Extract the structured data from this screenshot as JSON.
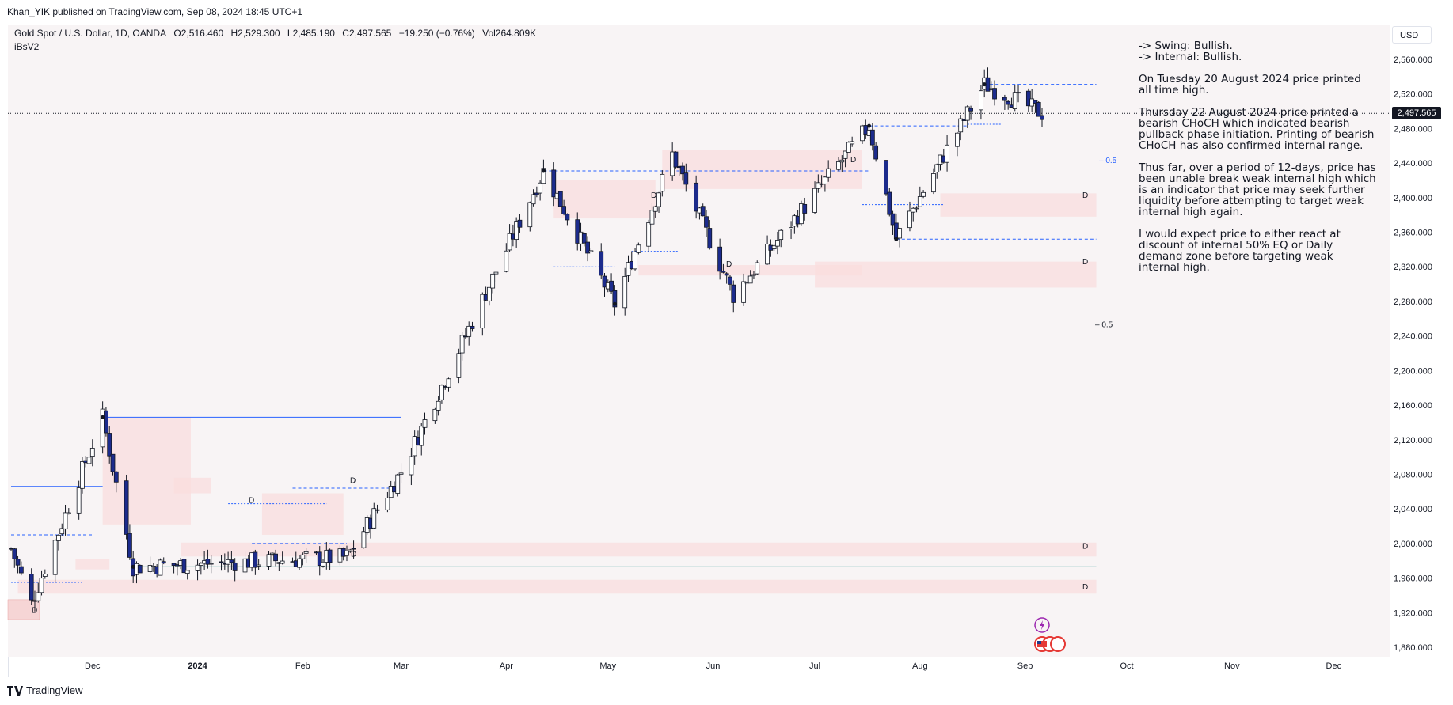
{
  "header": {
    "publisher": "Khan_YIK published on TradingView.com, Sep 08, 2024 18:45 UTC+1"
  },
  "legend": {
    "symbol": "Gold Spot / U.S. Dollar, 1D, OANDA",
    "open": "O2,516.460",
    "high": "H2,529.300",
    "low": "L2,485.190",
    "close": "C2,497.565",
    "change": "−19.250 (−0.76%)",
    "volume": "Vol264.809K",
    "indicator": "iBsV2"
  },
  "currency": "USD",
  "last_price_label": "2,497.565",
  "notes": [
    "-> Swing: Bullish.",
    "-> Internal: Bullish.",
    "On Tuesday 20 August 2024 price printed all time high.",
    "Thursday 22 August 2024 price printed a bearish CHoCH which indicated bearish pullback phase initiation.  Printing of bearish CHoCH has also confirmed internal range.",
    "Thus far, over a period of 12-days, price has been unable break weak internal high which is an indicator that price may seek further liquidity before attempting to target weak internal high again.",
    "I would expect price to either react at discount of internal 50% EQ or Daily demand zone before targeting weak internal high."
  ],
  "footer": {
    "brand": "TradingView"
  },
  "colors": {
    "bull": "#ffffff",
    "bear": "#1c2b8c",
    "zone": "#f9dede",
    "structure": "#2962ff",
    "grid": "#f0f3fa"
  },
  "chart_data": {
    "type": "candlestick",
    "symbol": "XAUUSD",
    "timeframe": "1D",
    "ylim": [
      1860,
      2580
    ],
    "y_ticks": [
      1880,
      1920,
      1960,
      2000,
      2040,
      2080,
      2120,
      2160,
      2200,
      2240,
      2280,
      2320,
      2360,
      2400,
      2440,
      2480,
      2520,
      2560
    ],
    "y_tick_labels": [
      "1,880.000",
      "1,920.000",
      "1,960.000",
      "2,000.000",
      "2,040.000",
      "2,080.000",
      "2,120.000",
      "2,160.000",
      "2,200.000",
      "2,240.000",
      "2,280.000",
      "2,320.000",
      "2,360.000",
      "2,400.000",
      "2,440.000",
      "2,480.000",
      "2,520.000",
      "2,560.000"
    ],
    "x_labels": [
      "Dec",
      "2024",
      "Feb",
      "Mar",
      "Apr",
      "May",
      "Jun",
      "Jul",
      "Aug",
      "Sep",
      "Oct",
      "Nov",
      "Dec"
    ],
    "last_price": 2497.565,
    "key_points": [
      {
        "date": "Nov 13, 2023",
        "price": 1931
      },
      {
        "date": "Dec 04, 2023",
        "price": 2146
      },
      {
        "date": "Dec 13, 2023",
        "price": 1973
      },
      {
        "date": "Feb 14, 2024",
        "price": 1984
      },
      {
        "date": "Mar 01, 2024",
        "price": 2083
      },
      {
        "date": "Apr 12, 2024",
        "price": 2431
      },
      {
        "date": "May 03, 2024",
        "price": 2277
      },
      {
        "date": "May 20, 2024",
        "price": 2450
      },
      {
        "date": "Jun 07, 2024",
        "price": 2287
      },
      {
        "date": "Jul 17, 2024",
        "price": 2483
      },
      {
        "date": "Jul 25, 2024",
        "price": 2353
      },
      {
        "date": "Aug 20, 2024",
        "price": 2531
      },
      {
        "date": "Sep 06, 2024",
        "price": 2497.565
      }
    ],
    "annotations": [
      "0.5",
      "0.5",
      "D"
    ],
    "grid": true,
    "legend": "top-left"
  }
}
